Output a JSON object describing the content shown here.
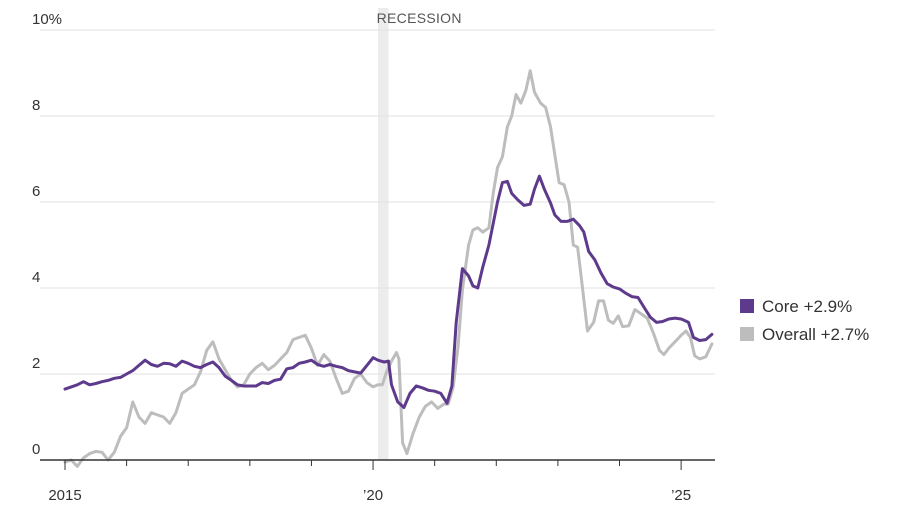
{
  "chart_data": {
    "type": "line",
    "y_unit_suffix": "%",
    "ylim": [
      0,
      10
    ],
    "y_ticks": [
      {
        "value": 0,
        "label": "0"
      },
      {
        "value": 2,
        "label": "2"
      },
      {
        "value": 4,
        "label": "4"
      },
      {
        "value": 6,
        "label": "6"
      },
      {
        "value": 8,
        "label": "8"
      },
      {
        "value": 10,
        "label": "10%"
      }
    ],
    "xlim": [
      2015.0,
      2025.55
    ],
    "x_tick_labels": [
      {
        "value": 2015,
        "label": "2015"
      },
      {
        "value": 2020,
        "label": "’20"
      },
      {
        "value": 2025,
        "label": "’25"
      }
    ],
    "x_minor_ticks": [
      2016,
      2017,
      2018,
      2019,
      2021,
      2022,
      2023,
      2024
    ],
    "grid": true,
    "recession": {
      "label": "RECESSION",
      "start": 2020.08,
      "end": 2020.25
    },
    "legend_position": "right",
    "colors": {
      "core": "#5e3a8c",
      "overall": "#bdbdbd",
      "recession_band": "#ececec",
      "grid": "#e2e2e2",
      "axis": "#333333"
    },
    "series": [
      {
        "key": "core",
        "name": "Core",
        "legend_label": "Core +2.9%",
        "color": "#5e3a8c",
        "points": [
          [
            2015.0,
            1.65
          ],
          [
            2015.1,
            1.7
          ],
          [
            2015.2,
            1.75
          ],
          [
            2015.3,
            1.82
          ],
          [
            2015.4,
            1.75
          ],
          [
            2015.5,
            1.78
          ],
          [
            2015.6,
            1.82
          ],
          [
            2015.7,
            1.85
          ],
          [
            2015.8,
            1.9
          ],
          [
            2015.9,
            1.92
          ],
          [
            2016.0,
            2.0
          ],
          [
            2016.1,
            2.08
          ],
          [
            2016.2,
            2.2
          ],
          [
            2016.3,
            2.32
          ],
          [
            2016.4,
            2.22
          ],
          [
            2016.5,
            2.18
          ],
          [
            2016.6,
            2.25
          ],
          [
            2016.7,
            2.24
          ],
          [
            2016.8,
            2.18
          ],
          [
            2016.9,
            2.3
          ],
          [
            2017.0,
            2.25
          ],
          [
            2017.1,
            2.18
          ],
          [
            2017.2,
            2.15
          ],
          [
            2017.3,
            2.22
          ],
          [
            2017.4,
            2.28
          ],
          [
            2017.5,
            2.15
          ],
          [
            2017.6,
            1.95
          ],
          [
            2017.7,
            1.85
          ],
          [
            2017.8,
            1.75
          ],
          [
            2017.9,
            1.72
          ],
          [
            2018.0,
            1.72
          ],
          [
            2018.1,
            1.72
          ],
          [
            2018.2,
            1.8
          ],
          [
            2018.3,
            1.78
          ],
          [
            2018.4,
            1.85
          ],
          [
            2018.5,
            1.88
          ],
          [
            2018.6,
            2.12
          ],
          [
            2018.7,
            2.15
          ],
          [
            2018.8,
            2.25
          ],
          [
            2018.9,
            2.28
          ],
          [
            2019.0,
            2.32
          ],
          [
            2019.1,
            2.22
          ],
          [
            2019.2,
            2.18
          ],
          [
            2019.3,
            2.22
          ],
          [
            2019.4,
            2.18
          ],
          [
            2019.5,
            2.15
          ],
          [
            2019.6,
            2.08
          ],
          [
            2019.7,
            2.05
          ],
          [
            2019.8,
            2.02
          ],
          [
            2019.9,
            2.2
          ],
          [
            2020.0,
            2.38
          ],
          [
            2020.08,
            2.32
          ],
          [
            2020.18,
            2.28
          ],
          [
            2020.25,
            2.3
          ],
          [
            2020.3,
            1.75
          ],
          [
            2020.4,
            1.35
          ],
          [
            2020.5,
            1.22
          ],
          [
            2020.6,
            1.55
          ],
          [
            2020.7,
            1.72
          ],
          [
            2020.8,
            1.68
          ],
          [
            2020.9,
            1.62
          ],
          [
            2021.0,
            1.6
          ],
          [
            2021.1,
            1.55
          ],
          [
            2021.2,
            1.32
          ],
          [
            2021.28,
            1.72
          ],
          [
            2021.35,
            3.2
          ],
          [
            2021.45,
            4.45
          ],
          [
            2021.55,
            4.28
          ],
          [
            2021.62,
            4.05
          ],
          [
            2021.7,
            4.0
          ],
          [
            2021.78,
            4.48
          ],
          [
            2021.88,
            5.0
          ],
          [
            2021.95,
            5.5
          ],
          [
            2022.02,
            6.0
          ],
          [
            2022.1,
            6.45
          ],
          [
            2022.18,
            6.48
          ],
          [
            2022.25,
            6.2
          ],
          [
            2022.35,
            6.05
          ],
          [
            2022.45,
            5.92
          ],
          [
            2022.55,
            5.95
          ],
          [
            2022.62,
            6.3
          ],
          [
            2022.7,
            6.6
          ],
          [
            2022.78,
            6.3
          ],
          [
            2022.88,
            5.98
          ],
          [
            2022.95,
            5.7
          ],
          [
            2023.05,
            5.55
          ],
          [
            2023.15,
            5.55
          ],
          [
            2023.25,
            5.6
          ],
          [
            2023.35,
            5.45
          ],
          [
            2023.42,
            5.3
          ],
          [
            2023.5,
            4.85
          ],
          [
            2023.6,
            4.65
          ],
          [
            2023.7,
            4.35
          ],
          [
            2023.8,
            4.1
          ],
          [
            2023.9,
            4.02
          ],
          [
            2024.0,
            3.98
          ],
          [
            2024.1,
            3.88
          ],
          [
            2024.2,
            3.8
          ],
          [
            2024.3,
            3.78
          ],
          [
            2024.4,
            3.55
          ],
          [
            2024.5,
            3.32
          ],
          [
            2024.6,
            3.2
          ],
          [
            2024.7,
            3.22
          ],
          [
            2024.8,
            3.28
          ],
          [
            2024.9,
            3.3
          ],
          [
            2025.0,
            3.28
          ],
          [
            2025.05,
            3.25
          ],
          [
            2025.12,
            3.2
          ],
          [
            2025.2,
            2.85
          ],
          [
            2025.3,
            2.78
          ],
          [
            2025.4,
            2.8
          ],
          [
            2025.5,
            2.92
          ]
        ]
      },
      {
        "key": "overall",
        "name": "Overall",
        "legend_label": "Overall +2.7%",
        "color": "#bdbdbd",
        "points": [
          [
            2015.0,
            -0.05
          ],
          [
            2015.1,
            0.0
          ],
          [
            2015.2,
            -0.15
          ],
          [
            2015.3,
            0.05
          ],
          [
            2015.4,
            0.15
          ],
          [
            2015.5,
            0.2
          ],
          [
            2015.6,
            0.18
          ],
          [
            2015.7,
            0.0
          ],
          [
            2015.8,
            0.18
          ],
          [
            2015.9,
            0.55
          ],
          [
            2016.0,
            0.75
          ],
          [
            2016.1,
            1.35
          ],
          [
            2016.2,
            1.0
          ],
          [
            2016.3,
            0.85
          ],
          [
            2016.4,
            1.1
          ],
          [
            2016.5,
            1.05
          ],
          [
            2016.6,
            1.0
          ],
          [
            2016.7,
            0.85
          ],
          [
            2016.8,
            1.1
          ],
          [
            2016.9,
            1.55
          ],
          [
            2017.0,
            1.65
          ],
          [
            2017.1,
            1.75
          ],
          [
            2017.2,
            2.05
          ],
          [
            2017.3,
            2.55
          ],
          [
            2017.4,
            2.75
          ],
          [
            2017.5,
            2.35
          ],
          [
            2017.6,
            2.1
          ],
          [
            2017.7,
            1.85
          ],
          [
            2017.8,
            1.7
          ],
          [
            2017.9,
            1.75
          ],
          [
            2018.0,
            2.0
          ],
          [
            2018.1,
            2.15
          ],
          [
            2018.2,
            2.25
          ],
          [
            2018.3,
            2.1
          ],
          [
            2018.4,
            2.2
          ],
          [
            2018.5,
            2.35
          ],
          [
            2018.6,
            2.5
          ],
          [
            2018.7,
            2.8
          ],
          [
            2018.8,
            2.85
          ],
          [
            2018.9,
            2.9
          ],
          [
            2019.0,
            2.6
          ],
          [
            2019.1,
            2.2
          ],
          [
            2019.2,
            2.45
          ],
          [
            2019.3,
            2.3
          ],
          [
            2019.4,
            1.9
          ],
          [
            2019.5,
            1.55
          ],
          [
            2019.6,
            1.6
          ],
          [
            2019.7,
            1.9
          ],
          [
            2019.8,
            2.0
          ],
          [
            2019.9,
            1.8
          ],
          [
            2020.0,
            1.7
          ],
          [
            2020.08,
            1.75
          ],
          [
            2020.15,
            1.75
          ],
          [
            2020.22,
            2.05
          ],
          [
            2020.3,
            2.3
          ],
          [
            2020.38,
            2.5
          ],
          [
            2020.42,
            2.35
          ],
          [
            2020.48,
            0.4
          ],
          [
            2020.55,
            0.15
          ],
          [
            2020.65,
            0.62
          ],
          [
            2020.75,
            1.0
          ],
          [
            2020.85,
            1.25
          ],
          [
            2020.95,
            1.35
          ],
          [
            2021.05,
            1.2
          ],
          [
            2021.15,
            1.3
          ],
          [
            2021.22,
            1.3
          ],
          [
            2021.3,
            1.7
          ],
          [
            2021.38,
            2.65
          ],
          [
            2021.45,
            3.95
          ],
          [
            2021.55,
            5.0
          ],
          [
            2021.62,
            5.35
          ],
          [
            2021.7,
            5.4
          ],
          [
            2021.78,
            5.3
          ],
          [
            2021.88,
            5.4
          ],
          [
            2021.95,
            6.2
          ],
          [
            2022.02,
            6.8
          ],
          [
            2022.1,
            7.05
          ],
          [
            2022.18,
            7.75
          ],
          [
            2022.25,
            8.0
          ],
          [
            2022.32,
            8.5
          ],
          [
            2022.4,
            8.3
          ],
          [
            2022.48,
            8.6
          ],
          [
            2022.55,
            9.05
          ],
          [
            2022.62,
            8.55
          ],
          [
            2022.72,
            8.3
          ],
          [
            2022.8,
            8.2
          ],
          [
            2022.88,
            7.75
          ],
          [
            2022.95,
            7.1
          ],
          [
            2023.02,
            6.45
          ],
          [
            2023.1,
            6.4
          ],
          [
            2023.18,
            6.0
          ],
          [
            2023.25,
            5.0
          ],
          [
            2023.32,
            4.95
          ],
          [
            2023.4,
            4.0
          ],
          [
            2023.48,
            3.0
          ],
          [
            2023.58,
            3.2
          ],
          [
            2023.66,
            3.7
          ],
          [
            2023.74,
            3.7
          ],
          [
            2023.82,
            3.25
          ],
          [
            2023.9,
            3.18
          ],
          [
            2023.98,
            3.35
          ],
          [
            2024.05,
            3.1
          ],
          [
            2024.15,
            3.12
          ],
          [
            2024.25,
            3.5
          ],
          [
            2024.35,
            3.4
          ],
          [
            2024.45,
            3.3
          ],
          [
            2024.55,
            2.95
          ],
          [
            2024.65,
            2.55
          ],
          [
            2024.72,
            2.45
          ],
          [
            2024.8,
            2.6
          ],
          [
            2024.9,
            2.75
          ],
          [
            2025.0,
            2.9
          ],
          [
            2025.08,
            3.0
          ],
          [
            2025.15,
            2.85
          ],
          [
            2025.22,
            2.42
          ],
          [
            2025.3,
            2.35
          ],
          [
            2025.4,
            2.4
          ],
          [
            2025.5,
            2.7
          ]
        ]
      }
    ]
  }
}
